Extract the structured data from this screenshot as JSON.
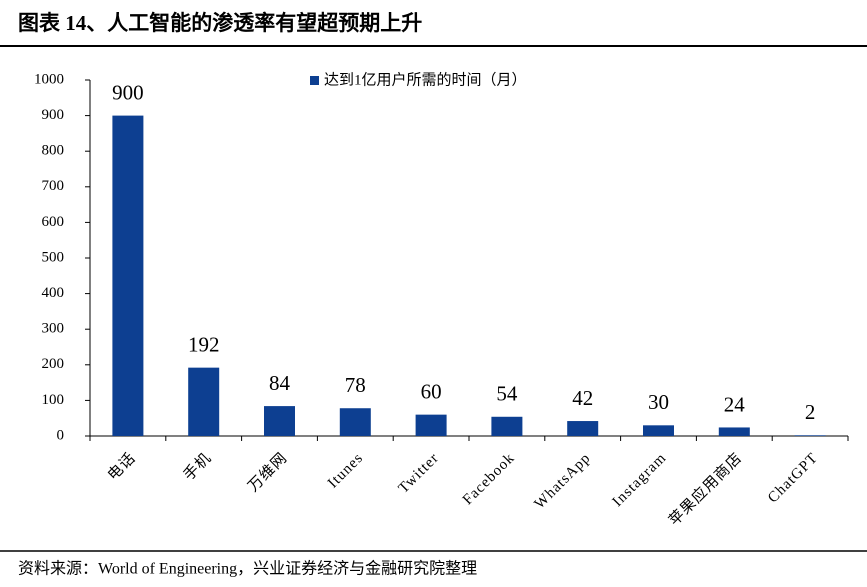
{
  "chart_data": {
    "type": "bar",
    "title": "图表 14、人工智能的渗透率有望超预期上升",
    "categories": [
      "电话",
      "手机",
      "万维网",
      "Itunes",
      "Twitter",
      "Facebook",
      "WhatsApp",
      "Instagram",
      "苹果应用商店",
      "ChatGPT"
    ],
    "series": [
      {
        "name": "达到1亿用户所需的时间（月）",
        "color": "#0d3f91",
        "values": [
          900,
          192,
          84,
          78,
          60,
          54,
          42,
          30,
          24,
          2
        ]
      }
    ],
    "ylim": [
      0,
      1000
    ],
    "yticks": [
      0,
      100,
      200,
      300,
      400,
      500,
      600,
      700,
      800,
      900,
      1000
    ],
    "grid": false,
    "legend": "top",
    "source": "资料来源：World of Engineering，兴业证券经济与金融研究院整理"
  }
}
